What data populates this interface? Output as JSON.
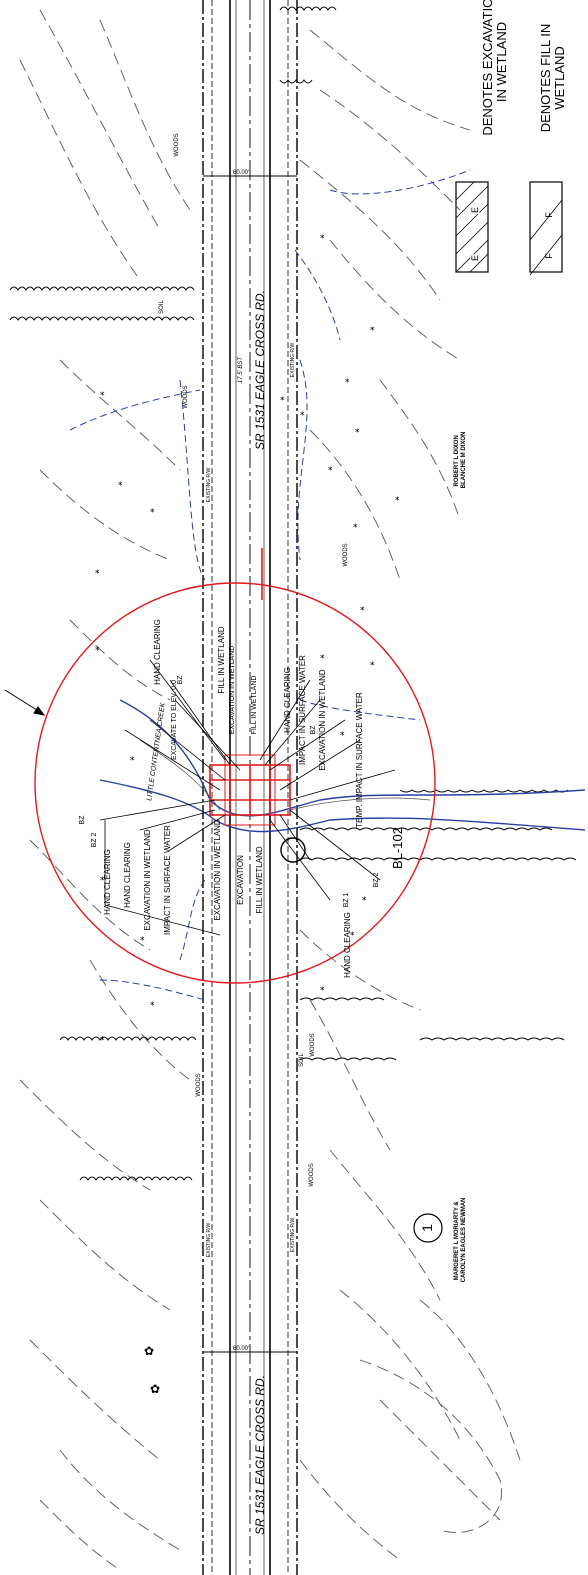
{
  "road": {
    "name_upper": "SR 1531 EAGLE CROSS RD.",
    "name_lower": "SR 1531 EAGLE CROSS RD.",
    "bst_note": "17.5' BST",
    "width_upper": "60.00'",
    "width_lower": "60.00'",
    "existing_rw": "EXISTING R/W"
  },
  "labels": {
    "woods": "WOODS",
    "soil": "SOIL",
    "creek": "LITTLE CONTENTNEA CREEK",
    "bridge_line": "BL-102",
    "site_number": "1",
    "wl_abbrev": "WLB",
    "bz1": "BZ 1",
    "bz2": "BZ 2",
    "bz": "BZ"
  },
  "annotations": {
    "hand_clearing": "HAND CLEARING",
    "excavation_in_wetland": "EXCAVATION IN WETLAND",
    "excavation": "EXCAVATION",
    "fill_in_wetland": "FILL IN WETLAND",
    "impact_in_surface_water": "IMPACT IN SURFACE WATER",
    "temp_impact": "TEMP. IMPACT IN SURFACE WATER",
    "excavation_to_elev": "EXCAVATE TO ELEV. 0.0"
  },
  "owners": {
    "north": "ROBERT L DIXON\nBLANCHE M DIXON",
    "south": "MARGERET L MORIARTY &\nCAROLYN EAGLES NEWMAN"
  },
  "legend": {
    "excavation": "DENOTES EXCAVATION IN WETLAND",
    "excavation_line1": "DENOTES EXCAVATION",
    "excavation_line2": "IN WETLAND",
    "excavation_symbol": "E",
    "fill": "DENOTES FILL IN WETLAND",
    "fill_line1": "DENOTES FILL IN",
    "fill_line2": "WETLAND",
    "fill_symbol": "F"
  },
  "colors": {
    "ink": "#000000",
    "wetland_blue": "#2b3fa3",
    "impact_red": "#e01b1b",
    "contour_gray": "#555555"
  }
}
